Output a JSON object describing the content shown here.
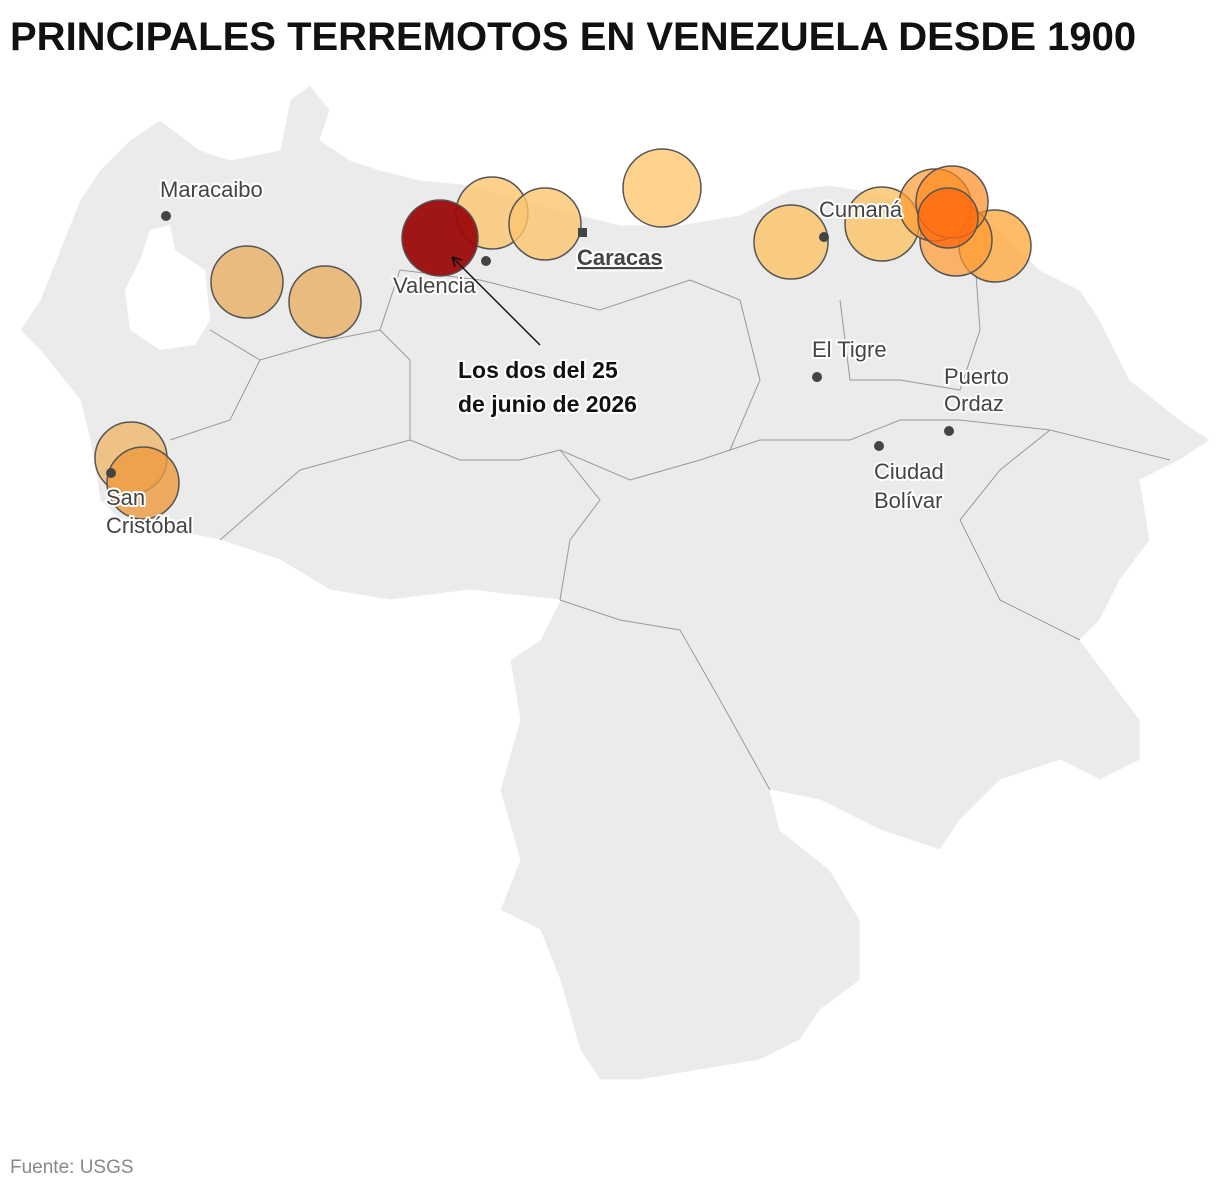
{
  "header": {
    "title": "PRINCIPALES TERREMOTOS EN VENEZUELA DESDE 1900"
  },
  "cities": [
    {
      "lines": [
        "Maracaibo"
      ]
    },
    {
      "lines": [
        "Valencia"
      ]
    },
    {
      "lines": [
        "Caracas"
      ]
    },
    {
      "lines": [
        "Cumaná"
      ]
    },
    {
      "lines": [
        "El Tigre"
      ]
    },
    {
      "lines": [
        "Puerto",
        "Ordaz"
      ]
    },
    {
      "lines": [
        "Ciudad",
        "Bolívar"
      ]
    },
    {
      "lines": [
        "San",
        "Cristóbal"
      ]
    }
  ],
  "annotation": {
    "lines": [
      "Los dos del 25",
      "de junio de 2026"
    ]
  },
  "source": "Fuente: USGS"
}
